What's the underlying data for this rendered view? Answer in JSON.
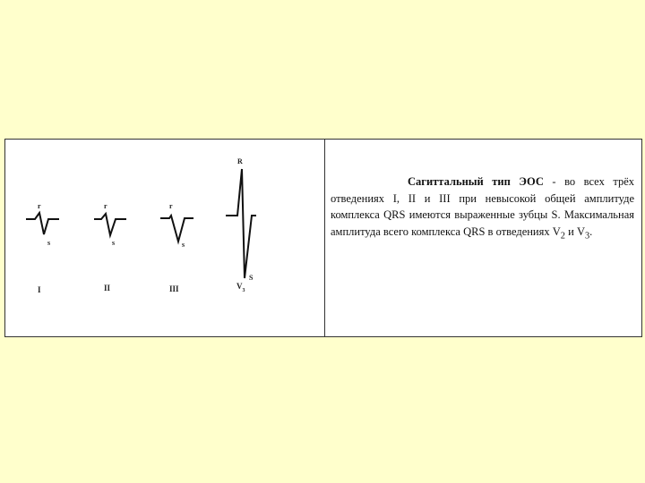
{
  "diagram": {
    "leads": [
      {
        "name": "I",
        "r_label": "r",
        "s_label": "s"
      },
      {
        "name": "II",
        "r_label": "r",
        "s_label": "s"
      },
      {
        "name": "III",
        "r_label": "r",
        "s_label": "s"
      },
      {
        "name": "V",
        "sub": "3",
        "r_label": "R",
        "s_label": "S"
      }
    ]
  },
  "description": {
    "title": "Сагиттальный тип ЭОС",
    "text_before": " - во всех трёх отведениях I, II и III при невысокой общей амплитуде комплекса QRS имеются выраженные зубцы S. Максимальная амплитуда всего комплекса QRS в отведениях ",
    "v2": "V",
    "v2_sub": "2",
    "and": " и ",
    "v3": "V",
    "v3_sub": "3",
    "end": "."
  }
}
